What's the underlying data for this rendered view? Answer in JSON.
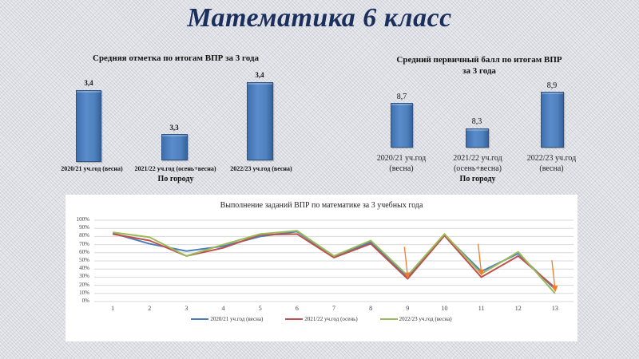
{
  "slide": {
    "title": "Математика 6 класс"
  },
  "colors": {
    "bar": "#4f81bd",
    "series": [
      "#4a7ebb",
      "#c0504d",
      "#9bbb59"
    ],
    "arrow": "#f07c2c",
    "title": "#1b2f5e"
  },
  "chart_data": [
    {
      "type": "bar",
      "title": "Средняя отметка по итогам ВПР за 3 года",
      "categories": [
        "2020/21 уч.год (весна)",
        "2021/22 уч.год (осень+весна)",
        "2022/23 уч.год (весна)"
      ],
      "values": [
        3.4,
        3.3,
        3.4
      ],
      "value_labels": [
        "3,4",
        "3,3",
        "3,4"
      ],
      "xlabel": "По городу",
      "ylabel": "",
      "grid": false,
      "legend": "none"
    },
    {
      "type": "bar",
      "title": "Средний первичный балл по итогам ВПР за 3 года",
      "title_lines": [
        "Средний первичный балл по итогам ВПР",
        "за 3 года"
      ],
      "categories": [
        "2020/21 уч.год (весна)",
        "2021/22 уч.год (осень+весна)",
        "2022/23 уч.год (весна)"
      ],
      "category_lines": [
        [
          "2020/21 уч.год",
          "(весна)"
        ],
        [
          "2021/22 уч.год",
          "(осень+весна)"
        ],
        [
          "2022/23 уч.год",
          "(весна)"
        ]
      ],
      "values": [
        8.7,
        8.3,
        8.9
      ],
      "value_labels": [
        "8,7",
        "8,3",
        "8,9"
      ],
      "xlabel": "По городу",
      "ylabel": "",
      "grid": false,
      "legend": "none"
    },
    {
      "type": "line",
      "title": "Выполнение заданий ВПР по математике за 3 учебных года",
      "x": [
        1,
        2,
        3,
        4,
        5,
        6,
        7,
        8,
        9,
        10,
        11,
        12,
        13
      ],
      "series": [
        {
          "name": "2020/21 уч.год (весна)",
          "color": "#4a7ebb",
          "values": [
            84,
            71,
            62,
            68,
            80,
            86,
            55,
            73,
            30,
            82,
            37,
            59,
            15
          ]
        },
        {
          "name": "2021/22 уч.год (осень)",
          "color": "#c0504d",
          "values": [
            83,
            75,
            56,
            66,
            82,
            83,
            54,
            71,
            28,
            81,
            30,
            56,
            17
          ]
        },
        {
          "name": "2022/23 уч.год (весна)",
          "color": "#9bbb59",
          "values": [
            85,
            79,
            56,
            70,
            83,
            87,
            56,
            75,
            32,
            83,
            34,
            61,
            10
          ]
        }
      ],
      "yticks": [
        "0%",
        "10%",
        "20%",
        "30%",
        "40%",
        "50%",
        "60%",
        "70%",
        "80%",
        "90%",
        "100%"
      ],
      "ylim": [
        0,
        100
      ],
      "xlabel": "",
      "ylabel": "",
      "grid": true,
      "legend_position": "bottom",
      "annotations": [
        {
          "type": "arrow",
          "target_x": 9
        },
        {
          "type": "arrow",
          "target_x": 11
        },
        {
          "type": "arrow",
          "target_x": 13
        }
      ]
    }
  ]
}
